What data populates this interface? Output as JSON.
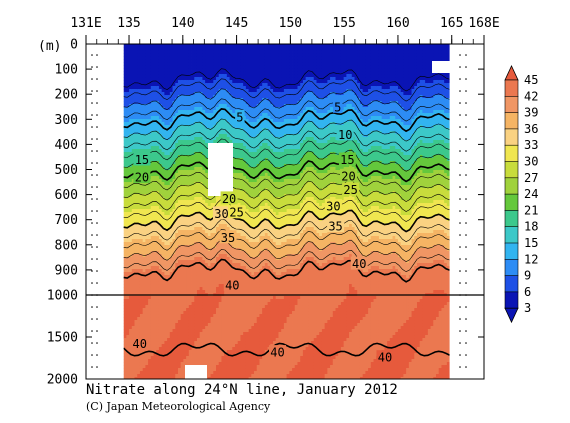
{
  "chart_data": {
    "type": "heatmap",
    "title": "Nitrate along 24°N line, January 2012",
    "credit": "(C) Japan Meteorological Agency",
    "xlabel": "",
    "ylabel": "(m)",
    "x_ticks": [
      "131E",
      "135",
      "140",
      "145",
      "150",
      "155",
      "160",
      "165",
      "168E"
    ],
    "x_tick_values": [
      131,
      135,
      140,
      145,
      150,
      155,
      160,
      165,
      168
    ],
    "xlim": [
      131,
      168
    ],
    "data_lon_range": [
      134.5,
      164.8
    ],
    "y_ticks_upper": [
      "0",
      "100",
      "200",
      "300",
      "400",
      "500",
      "600",
      "700",
      "800",
      "900",
      "1000"
    ],
    "y_ticks_lower": [
      "1500",
      "2000"
    ],
    "ylim": [
      0,
      2000
    ],
    "axis_break_depth": 1000,
    "colorbar_levels": [
      "3",
      "6",
      "9",
      "12",
      "15",
      "18",
      "21",
      "24",
      "27",
      "30",
      "33",
      "36",
      "39",
      "42",
      "45"
    ],
    "colorbar_colors": [
      "#0a14b4",
      "#1e50e6",
      "#2d8cf5",
      "#32b4f0",
      "#3cc8c8",
      "#3cc88c",
      "#64c83c",
      "#a0d23c",
      "#c8dc3c",
      "#f0e650",
      "#fad282",
      "#f5b464",
      "#f09664",
      "#eb7850",
      "#e65a3c"
    ],
    "contour_labels": [
      {
        "text": "5",
        "lon": 145.3,
        "depth": 290
      },
      {
        "text": "5",
        "lon": 154.4,
        "depth": 250
      },
      {
        "text": "10",
        "lon": 155.1,
        "depth": 360
      },
      {
        "text": "15",
        "lon": 136.2,
        "depth": 460
      },
      {
        "text": "15",
        "lon": 155.3,
        "depth": 460
      },
      {
        "text": "20",
        "lon": 136.2,
        "depth": 530
      },
      {
        "text": "20",
        "lon": 155.4,
        "depth": 525
      },
      {
        "text": "25",
        "lon": 155.6,
        "depth": 580
      },
      {
        "text": "20",
        "lon": 144.3,
        "depth": 615
      },
      {
        "text": "30",
        "lon": 143.6,
        "depth": 675
      },
      {
        "text": "25",
        "lon": 145.0,
        "depth": 670
      },
      {
        "text": "30",
        "lon": 154.0,
        "depth": 645
      },
      {
        "text": "35",
        "lon": 154.2,
        "depth": 725
      },
      {
        "text": "35",
        "lon": 144.2,
        "depth": 770
      },
      {
        "text": "40",
        "lon": 156.4,
        "depth": 875
      },
      {
        "text": "40",
        "lon": 144.6,
        "depth": 960
      },
      {
        "text": "40",
        "lon": 136.0,
        "depth": 1580
      },
      {
        "text": "40",
        "lon": 148.8,
        "depth": 1680
      },
      {
        "text": "40",
        "lon": 158.8,
        "depth": 1740
      }
    ]
  }
}
